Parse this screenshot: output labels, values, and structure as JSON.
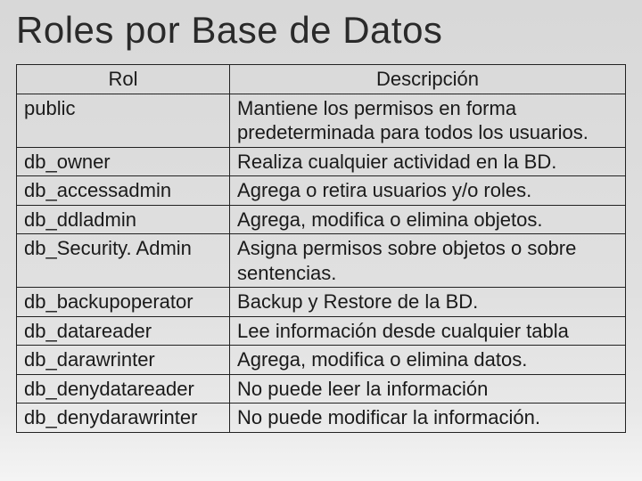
{
  "title": "Roles por Base de Datos",
  "table": {
    "columns": [
      "Rol",
      "Descripción"
    ],
    "col_widths": [
      "35%",
      "65%"
    ],
    "header_align": "center",
    "cell_align": "left",
    "border_color": "#222222",
    "font_size": 22,
    "rows": [
      {
        "rol": "public",
        "desc": "Mantiene los permisos en forma predeterminada para todos los usuarios."
      },
      {
        "rol": "db_owner",
        "desc": "Realiza cualquier actividad en la BD."
      },
      {
        "rol": "db_accessadmin",
        "desc": "Agrega o retira usuarios y/o roles."
      },
      {
        "rol": "db_ddladmin",
        "desc": "Agrega, modifica o elimina objetos."
      },
      {
        "rol": "db_Security. Admin",
        "desc": "Asigna permisos sobre objetos o sobre sentencias."
      },
      {
        "rol": "db_backupoperator",
        "desc": "Backup y Restore de la BD."
      },
      {
        "rol": "db_datareader",
        "desc": "Lee información desde cualquier tabla"
      },
      {
        "rol": "db_darawrinter",
        "desc": "Agrega, modifica o elimina datos."
      },
      {
        "rol": "db_denydatareader",
        "desc": "No puede leer la información"
      },
      {
        "rol": "db_denydarawrinter",
        "desc": "No puede modificar la información."
      }
    ]
  },
  "colors": {
    "background_top": "#d8d8d8",
    "background_bottom": "#f4f4f4",
    "text": "#1a1a1a",
    "title": "#2a2a2a"
  },
  "typography": {
    "title_fontsize": 42,
    "cell_fontsize": 22,
    "font_family": "Arial"
  }
}
